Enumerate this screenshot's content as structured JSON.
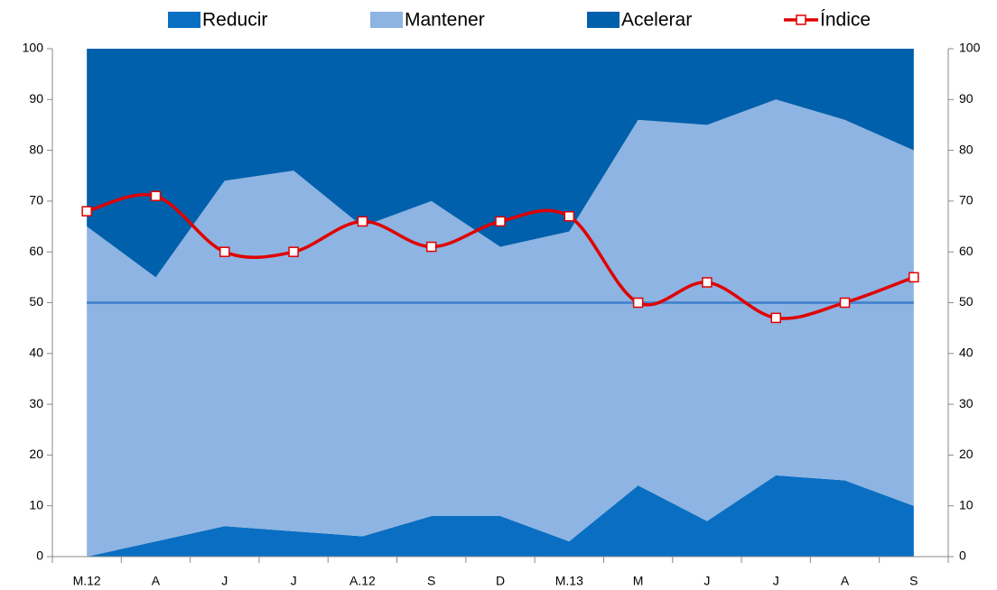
{
  "chart_data": {
    "type": "stacked_area_line",
    "categories": [
      "M.12",
      "A",
      "J",
      "J",
      "A.12",
      "S",
      "D",
      "M.13",
      "M",
      "J",
      "J",
      "A",
      "S"
    ],
    "series": [
      {
        "name": "Reducir",
        "color": "#0a6fc2",
        "values": [
          0,
          3,
          6,
          5,
          4,
          8,
          8,
          3,
          14,
          7,
          16,
          15,
          10
        ]
      },
      {
        "name": "Mantener",
        "color": "#8db4e2",
        "values": [
          65,
          52,
          68,
          71,
          61,
          62,
          53,
          61,
          72,
          78,
          74,
          71,
          70
        ]
      },
      {
        "name": "Acelerar",
        "color": "#0060ab",
        "values": [
          35,
          45,
          26,
          24,
          35,
          30,
          39,
          36,
          14,
          15,
          10,
          14,
          20
        ]
      },
      {
        "name": "Índice",
        "color": "#e00000",
        "axis": "y2",
        "type": "line",
        "smooth": true,
        "values": [
          68,
          71,
          60,
          60,
          66,
          61,
          66,
          67,
          50,
          54,
          47,
          50,
          55
        ]
      }
    ],
    "reference_line": {
      "value": 50,
      "color": "#4a86d0"
    },
    "ylim": [
      0,
      100
    ],
    "yticks": [
      0,
      10,
      20,
      30,
      40,
      50,
      60,
      70,
      80,
      90,
      100
    ],
    "y2lim": [
      0,
      100
    ],
    "y2ticks": [
      0,
      10,
      20,
      30,
      40,
      50,
      60,
      70,
      80,
      90,
      100
    ],
    "legend": "top"
  }
}
